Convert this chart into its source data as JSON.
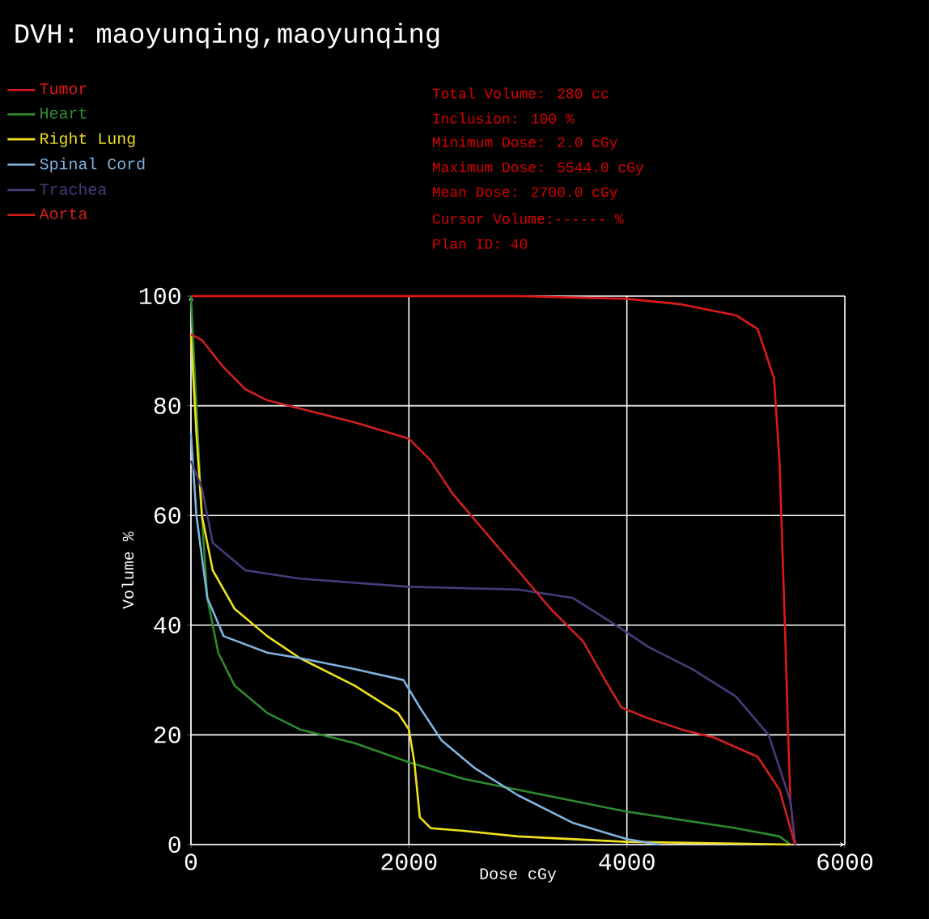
{
  "chart_data": {
    "type": "line",
    "title": "DVH:  maoyunqing,maoyunqing",
    "xlabel": "Dose cGy",
    "ylabel": "Volume %",
    "xlim": [
      0,
      6000
    ],
    "xticks": [
      0,
      2000,
      4000,
      6000
    ],
    "ylim": [
      0,
      100
    ],
    "yticks": [
      0,
      20,
      40,
      60,
      80,
      100
    ],
    "grid": true,
    "legend": "top left",
    "annotations": [
      "Total Volume:   280 cc",
      "Inclusion:   100 %",
      "Minimum Dose:    2.0 cGy",
      "Maximum Dose: 5544.0 cGy",
      "Mean Dose: 2700.0 cGy",
      "Cursor Volume:------ %",
      "Plan ID:    40"
    ],
    "series": [
      {
        "name": "Tumor",
        "color": "#e01818",
        "x": [
          0,
          3000,
          4000,
          4500,
          5000,
          5200,
          5350,
          5400,
          5450,
          5480,
          5500,
          5544
        ],
        "values": [
          100,
          100,
          99.5,
          98.5,
          96.5,
          94,
          85,
          70,
          40,
          20,
          8,
          0
        ]
      },
      {
        "name": "Heart",
        "color": "#2e8b2e",
        "x": [
          0,
          50,
          100,
          150,
          250,
          400,
          700,
          1000,
          1500,
          2000,
          2500,
          3000,
          3500,
          4000,
          4500,
          5000,
          5400,
          5500
        ],
        "values": [
          100,
          80,
          60,
          45,
          35,
          29,
          24,
          21,
          18.5,
          15,
          12,
          10,
          8,
          6,
          4.5,
          3,
          1.5,
          0
        ]
      },
      {
        "name": "Right Lung",
        "color": "#f0e020",
        "x": [
          0,
          50,
          100,
          200,
          400,
          700,
          1000,
          1500,
          1900,
          2000,
          2050,
          2100,
          2200,
          2500,
          3000,
          4000,
          5000,
          5500
        ],
        "values": [
          93,
          75,
          60,
          50,
          43,
          38,
          34,
          29,
          24,
          21,
          15,
          5,
          3,
          2.5,
          1.5,
          0.5,
          0.2,
          0
        ]
      },
      {
        "name": "Spinal Cord",
        "color": "#7fb2e0",
        "x": [
          0,
          50,
          150,
          300,
          700,
          1000,
          1500,
          1950,
          2100,
          2300,
          2600,
          3000,
          3500,
          4000,
          4300
        ],
        "values": [
          75,
          60,
          45,
          38,
          35,
          34,
          32,
          30,
          25,
          19,
          14,
          9,
          4,
          1,
          0
        ]
      },
      {
        "name": "Trachea",
        "color": "#4a3a7a",
        "x": [
          0,
          100,
          200,
          500,
          1000,
          2000,
          3000,
          3500,
          3900,
          4200,
          4600,
          5000,
          5300,
          5500,
          5544
        ],
        "values": [
          70,
          65,
          55,
          50,
          48.5,
          47,
          46.5,
          45,
          40,
          36,
          32,
          27,
          20,
          8,
          0
        ]
      },
      {
        "name": "Aorta",
        "color": "#d02020",
        "x": [
          0,
          100,
          300,
          500,
          700,
          1000,
          1500,
          2000,
          2200,
          2400,
          2700,
          3000,
          3300,
          3600,
          3800,
          3950,
          4200,
          4500,
          4800,
          5200,
          5400,
          5500,
          5544
        ],
        "values": [
          93,
          92,
          87,
          83,
          81,
          79.5,
          77,
          74,
          70,
          64,
          57,
          50,
          43,
          37,
          30,
          25,
          23,
          21,
          19.5,
          16,
          10,
          3,
          0
        ]
      }
    ]
  }
}
